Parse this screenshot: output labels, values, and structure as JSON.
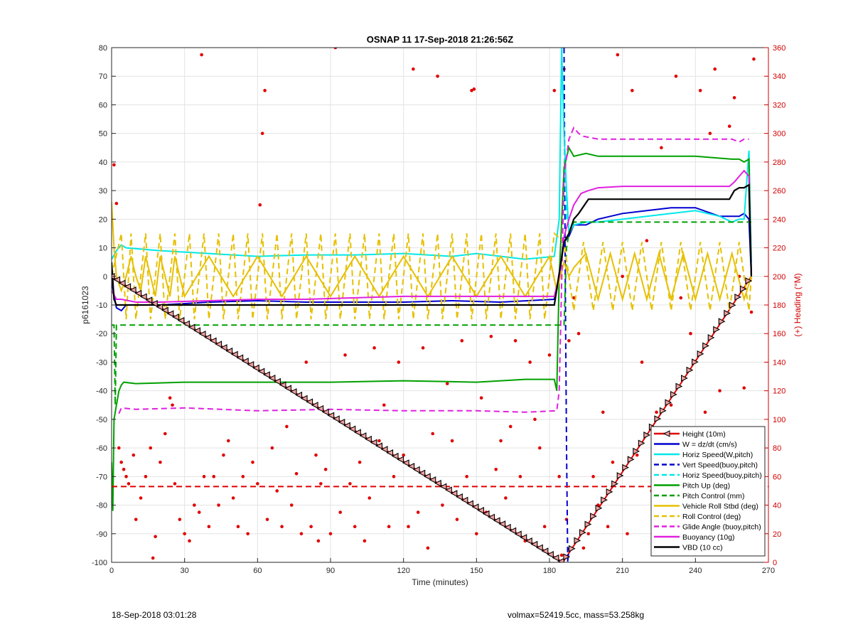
{
  "chart_data": {
    "type": "line",
    "title": "OSNAP 11 17-Sep-2018 21:26:56Z",
    "xlabel": "Time (minutes)",
    "ylabel_left": "p6161023",
    "ylabel_right": "(+) Heading (°M)",
    "xlim": [
      0,
      270
    ],
    "ylim_left": [
      -100,
      80
    ],
    "ylim_right": [
      0,
      360
    ],
    "xticks": [
      0,
      30,
      60,
      90,
      120,
      150,
      180,
      210,
      240,
      270
    ],
    "yticks_left": [
      -100,
      -90,
      -80,
      -70,
      -60,
      -50,
      -40,
      -30,
      -20,
      -10,
      0,
      10,
      20,
      30,
      40,
      50,
      60,
      70,
      80
    ],
    "yticks_right": [
      0,
      20,
      40,
      60,
      80,
      100,
      120,
      140,
      160,
      180,
      200,
      220,
      240,
      260,
      280,
      300,
      320,
      340,
      360
    ],
    "grid": true,
    "legend_position": "bottom-right",
    "series": [
      {
        "name": "Height (10m)",
        "color": "#e00000",
        "style": "solid",
        "x": [
          0,
          185.5,
          263
        ],
        "y": [
          0,
          -100,
          0
        ]
      },
      {
        "name": "W = dz/dt (cm/s)",
        "color": "#0000d0",
        "style": "solid",
        "x": [
          0,
          2,
          4,
          6,
          10,
          20,
          40,
          60,
          80,
          100,
          120,
          140,
          160,
          182,
          184,
          186,
          188,
          190,
          195,
          200,
          210,
          220,
          230,
          240,
          250,
          258,
          260,
          262,
          263
        ],
        "y": [
          -2,
          -11,
          -12,
          -10,
          -10,
          -10,
          -9,
          -8.5,
          -9,
          -9,
          -9,
          -8.5,
          -9,
          -8,
          0,
          12,
          14,
          18,
          18,
          20,
          22,
          23,
          24,
          24,
          21,
          21,
          22,
          20,
          0
        ]
      },
      {
        "name": "Horiz Speed(W,pitch)",
        "color": "#00e8e8",
        "style": "solid",
        "x": [
          0,
          2,
          4,
          6,
          20,
          40,
          60,
          80,
          100,
          120,
          140,
          150,
          160,
          170,
          182,
          184,
          185,
          186,
          187,
          188,
          190,
          195,
          200,
          220,
          230,
          240,
          250,
          255,
          258,
          260,
          262,
          263
        ],
        "y": [
          6,
          9,
          11,
          10,
          9,
          8,
          7,
          7.5,
          7.5,
          8,
          7,
          8,
          7,
          6,
          7,
          20,
          80,
          50,
          30,
          15,
          18,
          19,
          19,
          21,
          22,
          23,
          21,
          19,
          20,
          20,
          44,
          5
        ]
      },
      {
        "name": "Vert Speed(buoy,pitch)",
        "color": "#0000d0",
        "style": "dashed",
        "x": [
          186,
          186.5,
          187,
          187.5,
          188
        ],
        "y": [
          80,
          0,
          -60,
          -100,
          -95
        ]
      },
      {
        "name": "Horiz Speed(buoy,pitch)",
        "color": "#00e8e8",
        "style": "dashed",
        "x": [
          185,
          186,
          187
        ],
        "y": [
          80,
          50,
          20
        ]
      },
      {
        "name": "Pitch Up (deg)",
        "color": "#00a000",
        "style": "solid",
        "x": [
          0,
          0.5,
          1,
          2,
          3,
          4,
          5,
          10,
          30,
          60,
          90,
          120,
          150,
          170,
          182,
          183,
          184,
          186,
          188,
          190,
          195,
          200,
          220,
          240,
          255,
          258,
          260,
          262,
          263
        ],
        "y": [
          -65,
          -82,
          -50,
          -45,
          -40,
          -38,
          -37,
          -37.5,
          -37,
          -37,
          -37,
          -36.5,
          -37,
          -36,
          -36,
          -40,
          0,
          38,
          45,
          42,
          43,
          42,
          42,
          42,
          41,
          41,
          40,
          41,
          0
        ]
      },
      {
        "name": "Pitch Control (mm)",
        "color": "#00a000",
        "style": "dashed",
        "x": [
          0,
          1,
          1.5,
          2,
          182,
          183,
          186,
          187,
          188,
          190,
          263
        ],
        "y": [
          -17,
          -17,
          -45,
          -17,
          -17,
          -17,
          -17,
          10,
          15,
          19,
          19
        ]
      },
      {
        "name": "Vehicle Roll Stbd (deg)",
        "color": "#e6c000",
        "style": "solid",
        "x": [
          0,
          1,
          2,
          4,
          6,
          8,
          10,
          12,
          14,
          16,
          18,
          20,
          22,
          24,
          26,
          28,
          30,
          40,
          50,
          60,
          70,
          80,
          90,
          100,
          110,
          120,
          130,
          140,
          150,
          160,
          170,
          180,
          183,
          186,
          188,
          190,
          195,
          200,
          205,
          210,
          215,
          220,
          225,
          230,
          235,
          240,
          245,
          250,
          255,
          260,
          263
        ],
        "y": [
          26,
          10,
          0,
          -5,
          0,
          7,
          0,
          -5,
          7,
          0,
          -7,
          7,
          0,
          -7,
          7,
          0,
          -7,
          7,
          -7,
          7,
          -7,
          7,
          -7,
          7,
          -7,
          7,
          -7,
          7,
          -7,
          7,
          -7,
          7,
          -5,
          5,
          0,
          3,
          8,
          -8,
          8,
          -8,
          8,
          -8,
          8,
          -8,
          8,
          -8,
          8,
          -8,
          8,
          -8,
          0
        ]
      },
      {
        "name": "Roll Control (deg)",
        "color": "#e6c000",
        "style": "dashed",
        "x": [
          0,
          4,
          6,
          8,
          10,
          14,
          16,
          20,
          22,
          26,
          28,
          32,
          34,
          38,
          40,
          44,
          46,
          50,
          52,
          56,
          58,
          62,
          64,
          68,
          70,
          74,
          76,
          80,
          82,
          86,
          88,
          92,
          94,
          98,
          100,
          104,
          106,
          110,
          112,
          116,
          118,
          122,
          124,
          128,
          130,
          134,
          136,
          140,
          142,
          146,
          148,
          152,
          154,
          158,
          160,
          164,
          166,
          170,
          172,
          176,
          178,
          182,
          186,
          190,
          194,
          198,
          202,
          206,
          210,
          214,
          218,
          222,
          226,
          230,
          234,
          238,
          242,
          246,
          250,
          254,
          258,
          262,
          263
        ],
        "y": [
          0,
          15,
          -15,
          15,
          -15,
          15,
          -15,
          15,
          -15,
          15,
          -15,
          15,
          -15,
          15,
          -15,
          15,
          -15,
          15,
          -15,
          15,
          -15,
          15,
          -15,
          15,
          -15,
          15,
          -15,
          15,
          -15,
          15,
          -15,
          15,
          -15,
          15,
          -15,
          15,
          -15,
          15,
          -15,
          15,
          -15,
          15,
          -15,
          15,
          -15,
          15,
          -15,
          15,
          -15,
          15,
          -15,
          15,
          -15,
          15,
          -15,
          15,
          -15,
          15,
          -15,
          15,
          -15,
          15,
          12,
          -12,
          12,
          -12,
          12,
          -12,
          12,
          -12,
          12,
          -12,
          12,
          -12,
          12,
          -12,
          12,
          -12,
          12,
          -12,
          12,
          -12,
          0
        ]
      },
      {
        "name": "Glide Angle (buoy,pitch)",
        "color": "#e020e0",
        "style": "dashed",
        "x": [
          3,
          4,
          10,
          30,
          60,
          90,
          120,
          150,
          170,
          183,
          184,
          186,
          188,
          190,
          192,
          194,
          200,
          220,
          240,
          255,
          258,
          260,
          262
        ],
        "y": [
          -48,
          -46,
          -46.5,
          -46,
          -47,
          -46.5,
          -47,
          -47,
          -47.5,
          -47,
          -40,
          35,
          48,
          52,
          50,
          49,
          48,
          48,
          48,
          48,
          47,
          48,
          48
        ]
      },
      {
        "name": "Buoyancy (10g)",
        "color": "#e020e0",
        "style": "solid",
        "x": [
          0,
          2,
          4,
          10,
          20,
          40,
          60,
          80,
          100,
          120,
          140,
          160,
          182,
          184,
          186,
          188,
          190,
          193,
          196,
          200,
          210,
          220,
          230,
          240,
          250,
          254,
          256,
          258,
          260,
          262,
          263
        ],
        "y": [
          -5,
          -8,
          -8,
          -9,
          -9,
          -8.5,
          -8,
          -8,
          -7.5,
          -7,
          -7,
          -7,
          -7,
          0,
          14,
          20,
          25,
          29,
          30,
          31,
          31.5,
          31.5,
          31.5,
          31.5,
          31.5,
          31.5,
          33,
          35,
          37,
          35,
          0
        ]
      },
      {
        "name": "VBD (10 cc)",
        "color": "#000000",
        "style": "solid",
        "x": [
          0,
          1,
          2,
          10,
          180,
          182,
          186,
          188,
          190,
          192,
          196,
          254,
          256,
          258,
          260,
          262,
          263
        ],
        "y": [
          5,
          -8,
          -10,
          -10,
          -10,
          -10,
          12,
          15,
          20,
          22,
          27,
          27,
          30,
          31,
          31,
          32,
          0
        ]
      },
      {
        "name": "Depth 50m reference",
        "color": "#e00000",
        "style": "dashed",
        "legend": false,
        "x": [
          0,
          270
        ],
        "y": [
          -73.5,
          -73.5
        ]
      }
    ],
    "heading_points": [
      [
        1,
        278
      ],
      [
        2,
        251
      ],
      [
        3,
        80
      ],
      [
        4,
        70
      ],
      [
        5,
        65
      ],
      [
        6,
        60
      ],
      [
        7,
        55
      ],
      [
        9,
        75
      ],
      [
        10,
        30
      ],
      [
        12,
        45
      ],
      [
        14,
        60
      ],
      [
        16,
        80
      ],
      [
        17,
        3
      ],
      [
        18,
        18
      ],
      [
        20,
        70
      ],
      [
        22,
        90
      ],
      [
        24,
        115
      ],
      [
        25,
        110
      ],
      [
        26,
        55
      ],
      [
        28,
        30
      ],
      [
        30,
        20
      ],
      [
        32,
        15
      ],
      [
        34,
        40
      ],
      [
        36,
        35
      ],
      [
        37,
        355
      ],
      [
        38,
        60
      ],
      [
        40,
        25
      ],
      [
        42,
        60
      ],
      [
        44,
        40
      ],
      [
        46,
        75
      ],
      [
        48,
        85
      ],
      [
        50,
        45
      ],
      [
        52,
        25
      ],
      [
        54,
        60
      ],
      [
        56,
        20
      ],
      [
        58,
        70
      ],
      [
        60,
        55
      ],
      [
        61,
        250
      ],
      [
        62,
        300
      ],
      [
        63,
        330
      ],
      [
        64,
        30
      ],
      [
        66,
        80
      ],
      [
        68,
        50
      ],
      [
        70,
        25
      ],
      [
        72,
        95
      ],
      [
        74,
        40
      ],
      [
        76,
        62
      ],
      [
        78,
        20
      ],
      [
        80,
        140
      ],
      [
        82,
        25
      ],
      [
        84,
        75
      ],
      [
        85,
        15
      ],
      [
        86,
        55
      ],
      [
        88,
        65
      ],
      [
        90,
        20
      ],
      [
        92,
        360
      ],
      [
        94,
        35
      ],
      [
        96,
        145
      ],
      [
        98,
        55
      ],
      [
        100,
        25
      ],
      [
        102,
        70
      ],
      [
        104,
        15
      ],
      [
        106,
        45
      ],
      [
        108,
        150
      ],
      [
        110,
        85
      ],
      [
        112,
        110
      ],
      [
        114,
        25
      ],
      [
        116,
        60
      ],
      [
        118,
        140
      ],
      [
        120,
        75
      ],
      [
        122,
        25
      ],
      [
        124,
        345
      ],
      [
        126,
        35
      ],
      [
        128,
        150
      ],
      [
        130,
        10
      ],
      [
        132,
        90
      ],
      [
        134,
        340
      ],
      [
        135,
        55
      ],
      [
        136,
        40
      ],
      [
        138,
        125
      ],
      [
        140,
        85
      ],
      [
        142,
        30
      ],
      [
        144,
        155
      ],
      [
        146,
        60
      ],
      [
        148,
        330
      ],
      [
        149,
        331
      ],
      [
        150,
        20
      ],
      [
        152,
        115
      ],
      [
        154,
        35
      ],
      [
        156,
        158
      ],
      [
        158,
        65
      ],
      [
        160,
        85
      ],
      [
        162,
        45
      ],
      [
        164,
        95
      ],
      [
        166,
        155
      ],
      [
        168,
        60
      ],
      [
        170,
        15
      ],
      [
        172,
        140
      ],
      [
        174,
        100
      ],
      [
        176,
        80
      ],
      [
        178,
        25
      ],
      [
        180,
        145
      ],
      [
        182,
        330
      ],
      [
        184,
        60
      ],
      [
        185,
        5
      ],
      [
        186,
        345
      ],
      [
        187,
        30
      ],
      [
        188,
        155
      ],
      [
        190,
        185
      ],
      [
        192,
        160
      ],
      [
        194,
        10
      ],
      [
        196,
        20
      ],
      [
        198,
        60
      ],
      [
        200,
        40
      ],
      [
        202,
        105
      ],
      [
        204,
        25
      ],
      [
        206,
        70
      ],
      [
        208,
        355
      ],
      [
        210,
        200
      ],
      [
        212,
        20
      ],
      [
        214,
        330
      ],
      [
        216,
        75
      ],
      [
        218,
        140
      ],
      [
        220,
        225
      ],
      [
        222,
        50
      ],
      [
        224,
        105
      ],
      [
        226,
        290
      ],
      [
        228,
        35
      ],
      [
        230,
        110
      ],
      [
        232,
        340
      ],
      [
        234,
        185
      ],
      [
        236,
        10
      ],
      [
        238,
        160
      ],
      [
        240,
        45
      ],
      [
        242,
        330
      ],
      [
        244,
        105
      ],
      [
        246,
        300
      ],
      [
        248,
        345
      ],
      [
        250,
        120
      ],
      [
        252,
        45
      ],
      [
        254,
        305
      ],
      [
        256,
        325
      ],
      [
        258,
        200
      ],
      [
        260,
        122
      ],
      [
        262,
        80
      ],
      [
        263,
        175
      ],
      [
        264,
        352
      ]
    ],
    "heading_series_name": "(+) Heading (°M)"
  },
  "footer": {
    "left": "18-Sep-2018 03:01:28",
    "right": "volmax=52419.5cc, mass=53.258kg"
  }
}
